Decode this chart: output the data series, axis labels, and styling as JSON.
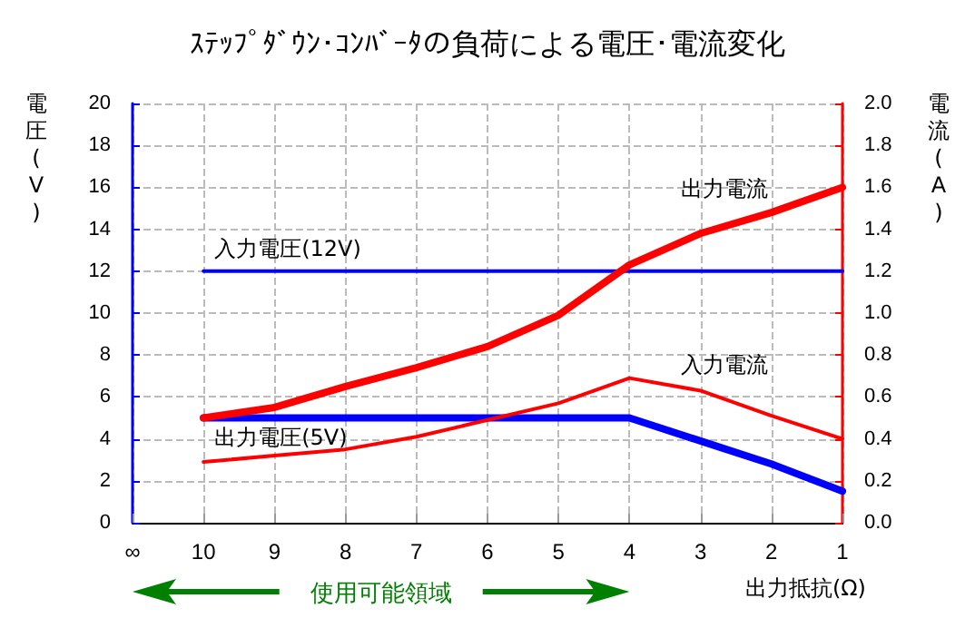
{
  "chart_data": {
    "type": "line",
    "title": "ｽﾃｯﾌﾟﾀﾞｳﾝ･ｺﾝﾊﾞｰﾀの負荷による電圧･電流変化",
    "categories": [
      "∞",
      "10",
      "9",
      "8",
      "7",
      "6",
      "5",
      "4",
      "3",
      "2",
      "1"
    ],
    "xlabel": "出力抵抗(Ω)",
    "ylabel": "電圧(V)",
    "y2label": "電流(A)",
    "series": [
      {
        "name": "入力電圧(12V)",
        "color": "#0000ff",
        "values": [
          null,
          12,
          12,
          12,
          12,
          12,
          12,
          12,
          12,
          12,
          12
        ]
      },
      {
        "name": "出力電圧(5V)",
        "color": "#0000ff",
        "values": [
          null,
          5,
          5,
          5,
          5,
          5,
          5,
          5,
          3.9,
          2.8,
          1.5
        ]
      },
      {
        "name": "出力電流",
        "color": "#ff0000",
        "axis": "y2",
        "values": [
          null,
          0.5,
          0.55,
          0.65,
          0.74,
          0.84,
          0.99,
          1.23,
          1.38,
          1.48,
          1.6
        ]
      },
      {
        "name": "入力電流",
        "color": "#ff0000",
        "axis": "y2",
        "values": [
          null,
          0.29,
          0.32,
          0.35,
          0.41,
          0.49,
          0.57,
          0.69,
          0.63,
          0.51,
          0.4
        ]
      }
    ],
    "ylim": [
      0,
      20
    ],
    "yticks": [
      0,
      2,
      4,
      6,
      8,
      10,
      12,
      14,
      16,
      18,
      20
    ],
    "y2lim": [
      0,
      2
    ],
    "y2ticks": [
      {
        "value": 0,
        "label": "0.0"
      },
      0.2,
      0.4,
      0.6,
      0.8,
      {
        "value": 1,
        "label": "1.0"
      },
      1.2,
      1.4,
      1.6,
      1.8,
      {
        "value": 2,
        "label": "2.0"
      }
    ],
    "grid": true,
    "legend": false,
    "marker": "none",
    "line_style": "solid",
    "annotations": [
      "使用可能領域"
    ]
  }
}
